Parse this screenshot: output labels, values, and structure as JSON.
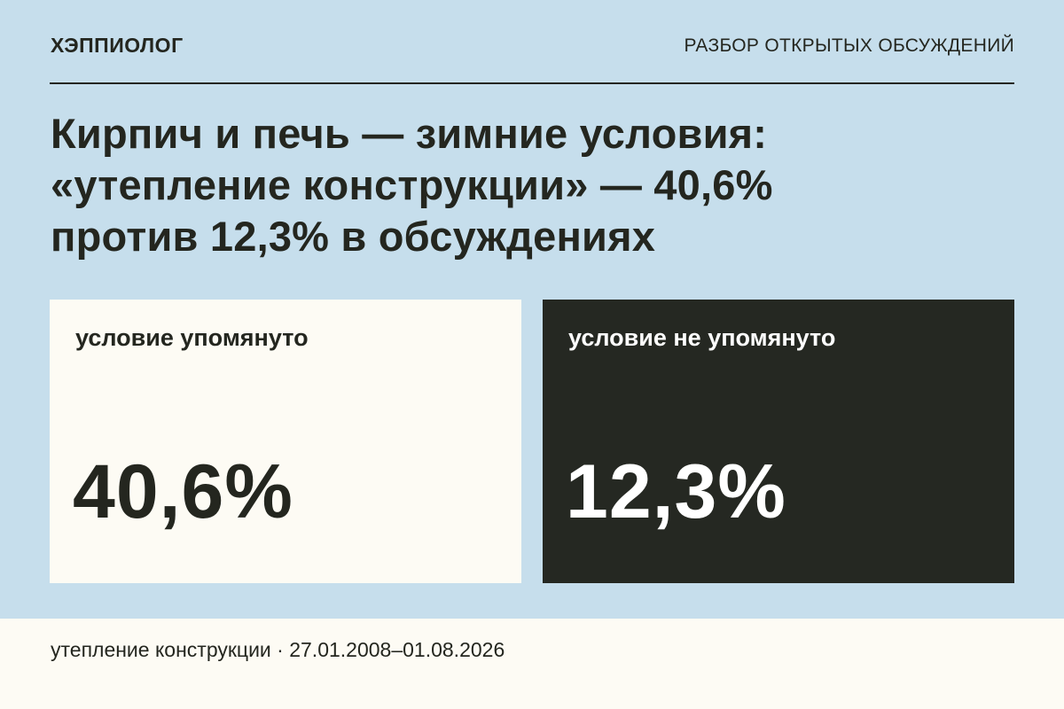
{
  "header": {
    "brand": "ХЭППИОЛОГ",
    "section": "РАЗБОР ОТКРЫТЫХ ОБСУЖДЕНИЙ"
  },
  "title": {
    "lines": [
      "Кирпич и печь — зимние условия:",
      "«утепление конструкции» — 40,6%",
      "против 12,3% в обсуждениях"
    ]
  },
  "cards": [
    {
      "label": "условие упомянуто",
      "value": "40,6%"
    },
    {
      "label": "условие не упомянуто",
      "value": "12,3%"
    }
  ],
  "footer": {
    "text": "утепление конструкции · 27.01.2008–01.08.2026"
  }
}
